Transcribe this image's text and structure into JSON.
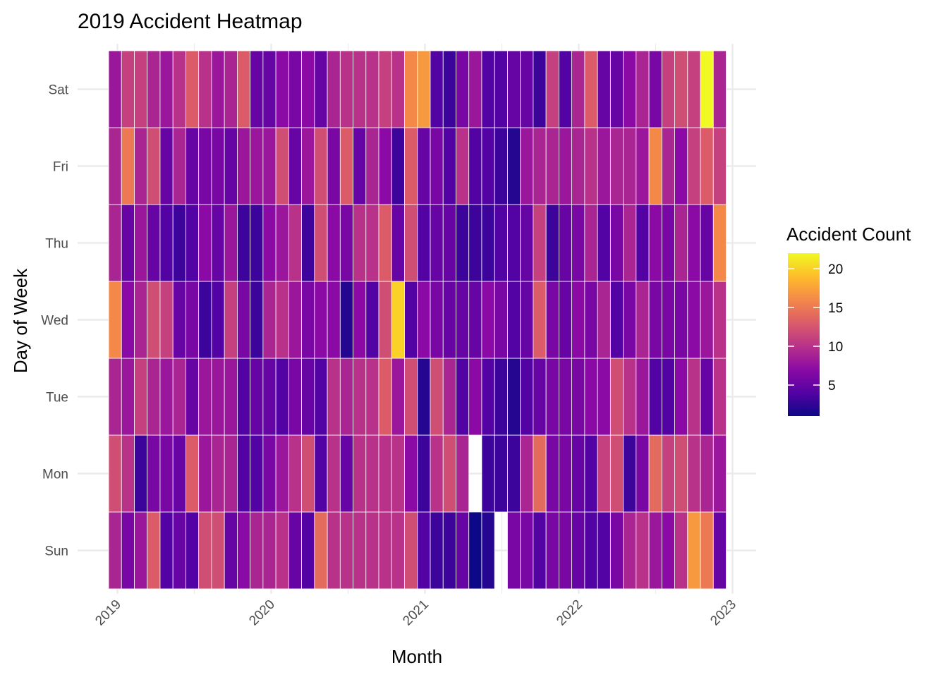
{
  "chart_data": {
    "type": "heatmap",
    "title": "2019 Accident Heatmap",
    "xlabel": "Month",
    "ylabel": "Day of Week",
    "x_ticks": [
      "2019",
      "2020",
      "2021",
      "2022",
      "2023"
    ],
    "y_categories": [
      "Sun",
      "Mon",
      "Tue",
      "Wed",
      "Thu",
      "Fri",
      "Sat"
    ],
    "months": [
      "2019-01",
      "2019-02",
      "2019-03",
      "2019-04",
      "2019-05",
      "2019-06",
      "2019-07",
      "2019-08",
      "2019-09",
      "2019-10",
      "2019-11",
      "2019-12",
      "2020-01",
      "2020-02",
      "2020-03",
      "2020-04",
      "2020-05",
      "2020-06",
      "2020-07",
      "2020-08",
      "2020-09",
      "2020-10",
      "2020-11",
      "2020-12",
      "2021-01",
      "2021-02",
      "2021-03",
      "2021-04",
      "2021-05",
      "2021-06",
      "2021-07",
      "2021-08",
      "2021-09",
      "2021-10",
      "2021-11",
      "2021-12",
      "2022-01",
      "2022-02",
      "2022-03",
      "2022-04",
      "2022-05",
      "2022-06",
      "2022-07",
      "2022-08",
      "2022-09",
      "2022-10",
      "2022-11",
      "2022-12"
    ],
    "values": {
      "Sun": [
        9,
        6,
        8,
        13,
        4,
        5,
        4,
        12,
        12,
        5,
        7,
        9,
        9,
        10,
        5,
        4,
        14,
        10,
        10,
        10,
        10,
        10,
        10,
        12,
        4,
        3,
        3,
        5,
        1,
        2,
        null,
        6,
        6,
        4,
        6,
        6,
        5,
        4,
        4,
        6,
        9,
        10,
        8,
        7,
        10,
        17,
        15,
        5
      ],
      "Mon": [
        12,
        10,
        3,
        6,
        6,
        5,
        13,
        8,
        9,
        9,
        4,
        4,
        6,
        8,
        10,
        12,
        4,
        10,
        5,
        10,
        10,
        10,
        10,
        7,
        3,
        10,
        12,
        9,
        null,
        3,
        3,
        3,
        9,
        14,
        6,
        6,
        5,
        4,
        11,
        12,
        3,
        6,
        14,
        11,
        12,
        10,
        9,
        8
      ],
      "Tue": [
        9,
        8,
        11,
        9,
        8,
        9,
        5,
        8,
        8,
        8,
        4,
        5,
        5,
        4,
        6,
        5,
        4,
        10,
        9,
        10,
        10,
        13,
        8,
        12,
        2,
        12,
        9,
        4,
        7,
        4,
        3,
        2,
        4,
        5,
        6,
        6,
        6,
        7,
        7,
        12,
        10,
        8,
        4,
        4,
        7,
        10,
        5,
        10
      ],
      "Wed": [
        16,
        7,
        9,
        12,
        11,
        5,
        6,
        3,
        4,
        11,
        6,
        3,
        9,
        10,
        8,
        6,
        7,
        7,
        2,
        7,
        4,
        12,
        20,
        4,
        7,
        6,
        5,
        5,
        5,
        7,
        6,
        4,
        5,
        13,
        6,
        5,
        7,
        6,
        9,
        4,
        6,
        9,
        6,
        6,
        6,
        7,
        8,
        10
      ],
      "Thu": [
        9,
        5,
        8,
        5,
        4,
        3,
        4,
        7,
        5,
        8,
        3,
        3,
        7,
        8,
        10,
        3,
        12,
        7,
        6,
        10,
        10,
        13,
        5,
        12,
        4,
        5,
        5,
        3,
        3,
        3,
        4,
        4,
        5,
        11,
        3,
        5,
        6,
        9,
        4,
        6,
        9,
        4,
        7,
        6,
        9,
        7,
        5,
        16
      ],
      "Fri": [
        9,
        15,
        9,
        12,
        5,
        9,
        5,
        6,
        6,
        5,
        8,
        8,
        8,
        12,
        5,
        8,
        12,
        6,
        13,
        5,
        9,
        7,
        3,
        13,
        5,
        6,
        4,
        10,
        4,
        4,
        3,
        2,
        8,
        9,
        9,
        8,
        9,
        10,
        8,
        9,
        9,
        8,
        16,
        9,
        7,
        11,
        13,
        11
      ],
      "Sat": [
        8,
        11,
        11,
        9,
        8,
        10,
        13,
        10,
        8,
        9,
        13,
        5,
        5,
        7,
        6,
        7,
        5,
        9,
        10,
        10,
        10,
        11,
        10,
        16,
        17,
        4,
        3,
        6,
        8,
        4,
        4,
        5,
        5,
        3,
        11,
        4,
        9,
        13,
        5,
        5,
        7,
        9,
        6,
        11,
        12,
        11,
        22,
        9
      ]
    },
    "color_scale": {
      "name": "plasma",
      "min": 1,
      "max": 22,
      "stops": [
        "#0d0887",
        "#5302a3",
        "#8b0aa5",
        "#b83289",
        "#db5c68",
        "#f48849",
        "#febd2a",
        "#f0f921"
      ]
    },
    "legend": {
      "title": "Accident Count",
      "ticks": [
        5,
        10,
        15,
        20
      ],
      "position": "right"
    },
    "grid": true,
    "missing_cell_color": "#ffffff"
  }
}
